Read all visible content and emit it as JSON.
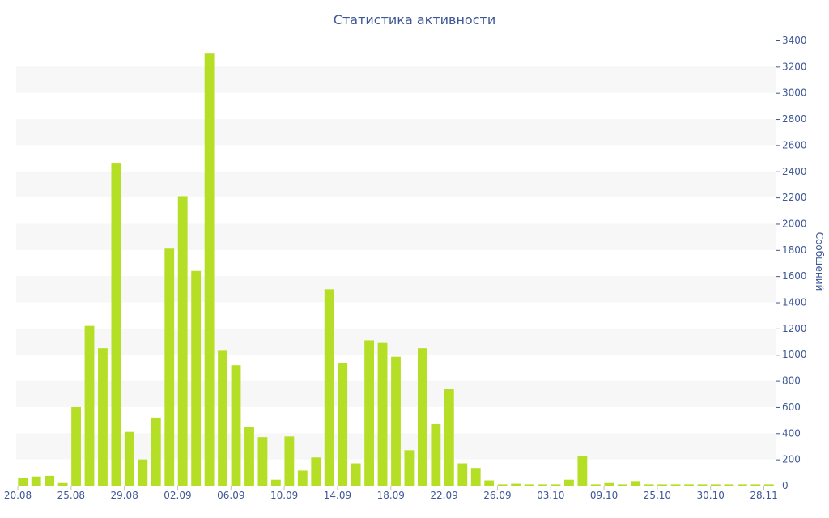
{
  "chart_data": {
    "type": "bar",
    "title": "Статистика активности",
    "ylabel": "Сообщений",
    "xlabel": "",
    "ylim": [
      0,
      3400
    ],
    "yticks": [
      0,
      200,
      400,
      600,
      800,
      1000,
      1200,
      1400,
      1600,
      1800,
      2000,
      2200,
      2400,
      2600,
      2800,
      3000,
      3200,
      3400
    ],
    "y_axis_side": "right",
    "grid": "alternating horizontal bands",
    "xtick_labels": [
      {
        "index": 0,
        "label": "20.08"
      },
      {
        "index": 4,
        "label": "25.08"
      },
      {
        "index": 8,
        "label": "29.08"
      },
      {
        "index": 12,
        "label": "02.09"
      },
      {
        "index": 16,
        "label": "06.09"
      },
      {
        "index": 20,
        "label": "10.09"
      },
      {
        "index": 24,
        "label": "14.09"
      },
      {
        "index": 28,
        "label": "18.09"
      },
      {
        "index": 32,
        "label": "22.09"
      },
      {
        "index": 36,
        "label": "26.09"
      },
      {
        "index": 40,
        "label": "03.10"
      },
      {
        "index": 44,
        "label": "09.10"
      },
      {
        "index": 48,
        "label": "25.10"
      },
      {
        "index": 52,
        "label": "30.10"
      },
      {
        "index": 56,
        "label": "28.11"
      }
    ],
    "values": [
      60,
      70,
      75,
      20,
      600,
      1220,
      1050,
      2460,
      410,
      200,
      520,
      1810,
      2210,
      1640,
      3300,
      1030,
      920,
      445,
      370,
      45,
      375,
      115,
      215,
      1500,
      935,
      170,
      1110,
      1090,
      985,
      270,
      1050,
      470,
      740,
      170,
      135,
      40,
      10,
      15,
      10,
      10,
      10,
      45,
      225,
      10,
      20,
      10,
      35,
      10,
      10,
      10,
      10,
      10,
      10,
      10,
      10,
      10,
      10
    ],
    "bar_color": "#b5df27",
    "band_color": "#f7f7f7",
    "text_color": "#3e5795"
  }
}
